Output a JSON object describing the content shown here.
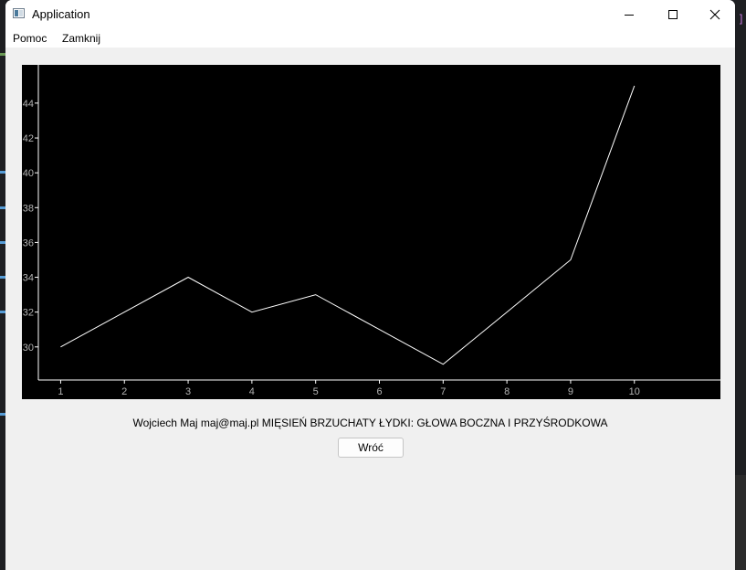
{
  "window": {
    "title": "Application",
    "menu": [
      "Pomoc",
      "Zamknij"
    ]
  },
  "footer": {
    "caption": "Wojciech Maj maj@maj.pl  MIĘSIEŃ BRZUCHATY ŁYDKI: GŁOWA BOCZNA I PRZYŚRODKOWA",
    "back_label": "Wróć"
  },
  "colors": {
    "plot_background": "#000000",
    "line": "#ffffff",
    "axis": "#ffffff",
    "tick_label": "#b4b4b4"
  },
  "chart_data": {
    "type": "line",
    "x": [
      1,
      2,
      3,
      4,
      5,
      6,
      7,
      8,
      9,
      10
    ],
    "series": [
      {
        "values": [
          30,
          32,
          34,
          32,
          33,
          31,
          29,
          32,
          35,
          45
        ]
      }
    ],
    "xticks": [
      1,
      2,
      3,
      4,
      5,
      6,
      7,
      8,
      9,
      10
    ],
    "yticks": [
      30,
      32,
      34,
      36,
      38,
      40,
      42,
      44
    ],
    "xlim": [
      0.65,
      11.35
    ],
    "ylim": [
      28.1,
      46.2
    ],
    "grid": false,
    "title": "",
    "xlabel": "",
    "ylabel": ""
  }
}
